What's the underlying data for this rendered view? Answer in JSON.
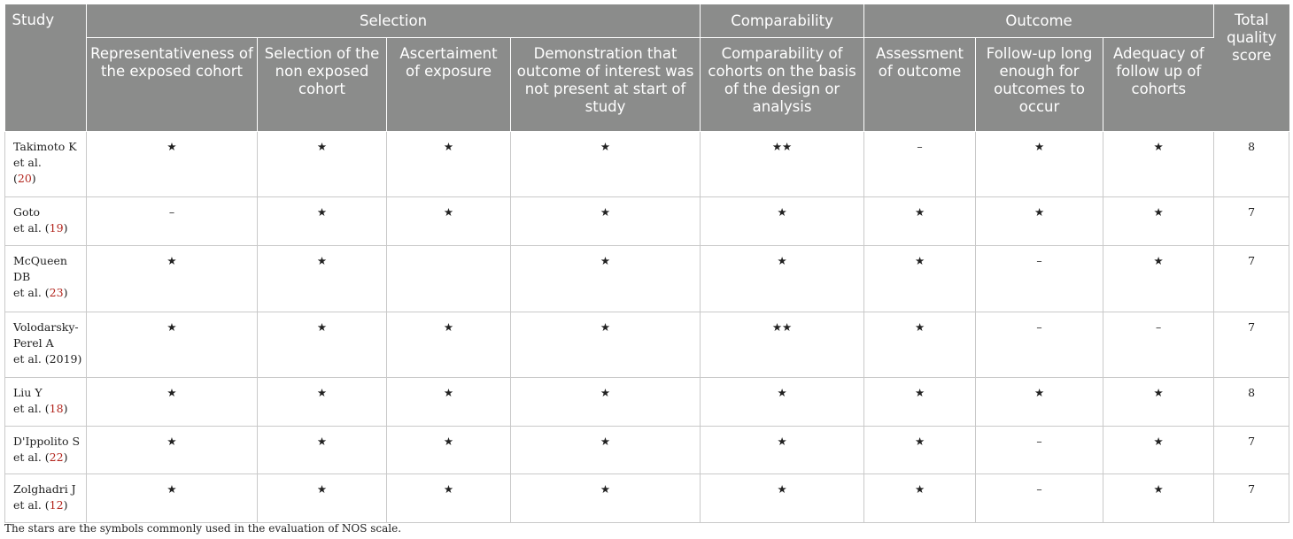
{
  "header": {
    "study": "Study",
    "selection": "Selection",
    "comparability": "Comparability",
    "outcome": "Outcome",
    "total": "Total quality score",
    "sub": [
      "Representativeness of the exposed cohort",
      "Selection of the non exposed cohort",
      "Ascertaiment of exposure",
      "Demonstration that outcome of interest was not present at start of study",
      "Comparability of cohorts on the basis of the design or analysis",
      "Assessment of outcome",
      "Follow-up long enough for outcomes to occur",
      "Adequacy of follow up of cohorts"
    ]
  },
  "rows": [
    {
      "study_lines": [
        "Takimoto K",
        "et al."
      ],
      "ref": "20",
      "cells": [
        "★",
        "★",
        "★",
        "★",
        "★★",
        "–",
        "★",
        "★"
      ],
      "total": "8"
    },
    {
      "study_lines": [
        "Goto",
        "et al. ("
      ],
      "ref": "19",
      "cells": [
        "–",
        "★",
        "★",
        "★",
        "★",
        "★",
        "★",
        "★"
      ],
      "total": "7"
    },
    {
      "study_lines": [
        "McQueen",
        "DB",
        "et al. ("
      ],
      "ref": "23",
      "cells": [
        "★",
        "★",
        "",
        "★",
        "★",
        "★",
        "–",
        "★"
      ],
      "total": "7"
    },
    {
      "study_lines": [
        "Volodarsky-",
        "Perel A",
        "et al. (2019)"
      ],
      "ref": "",
      "cells": [
        "★",
        "★",
        "★",
        "★",
        "★★",
        "★",
        "–",
        "–"
      ],
      "total": "7"
    },
    {
      "study_lines": [
        "Liu Y",
        "et al. ("
      ],
      "ref": "18",
      "cells": [
        "★",
        "★",
        "★",
        "★",
        "★",
        "★",
        "★",
        "★"
      ],
      "total": "8"
    },
    {
      "study_lines": [
        "D'Ippolito S",
        "et al. ("
      ],
      "ref": "22",
      "cells": [
        "★",
        "★",
        "★",
        "★",
        "★",
        "★",
        "–",
        "★"
      ],
      "total": "7"
    },
    {
      "study_lines": [
        "Zolghadri J",
        "et al. ("
      ],
      "ref": "12",
      "cells": [
        "★",
        "★",
        "★",
        "★",
        "★",
        "★",
        "–",
        "★"
      ],
      "total": "7"
    }
  ],
  "footnote": "The stars are the symbols commonly used in the evaluation of NOS scale."
}
